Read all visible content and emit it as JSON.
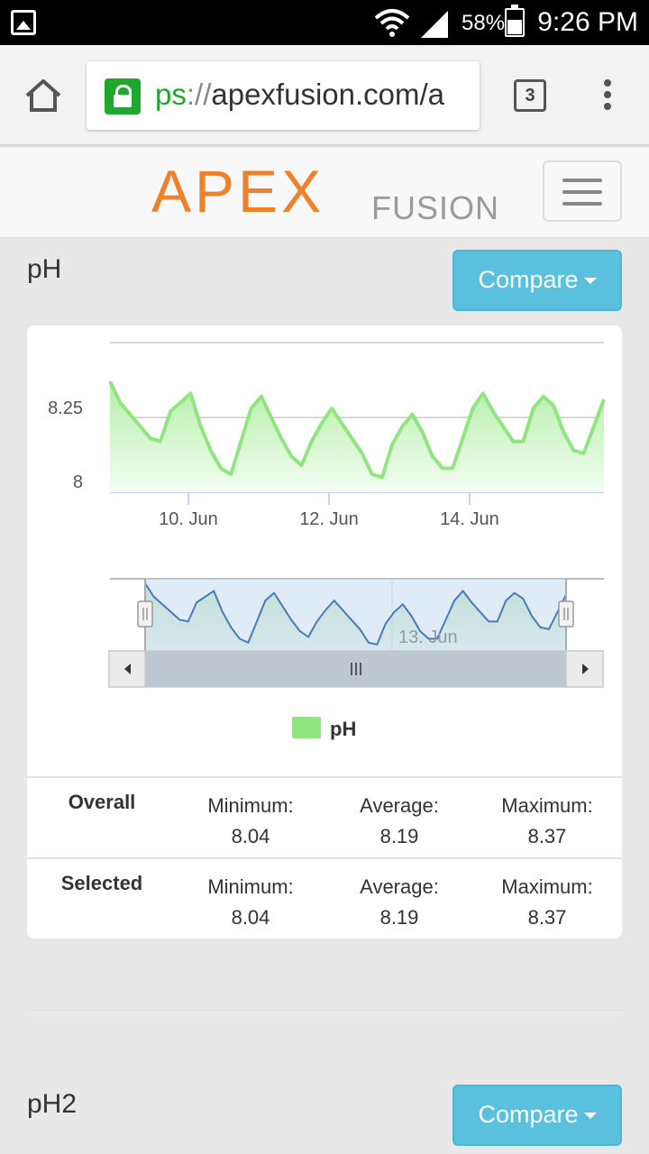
{
  "status_bar": {
    "battery_percent": "58%",
    "time": "9:26 PM",
    "icons": [
      "gallery-icon",
      "wifi-icon",
      "signal-icon",
      "battery-icon"
    ]
  },
  "browser": {
    "url_scheme": "ps",
    "url_sep": "://",
    "url_host": "apexfusion.com/a",
    "tab_count": "3"
  },
  "site": {
    "logo_main": "APEX",
    "logo_sub": "FUSION"
  },
  "sections": [
    {
      "title": "pH",
      "compare_label": "Compare",
      "legend_label": "pH",
      "stats": {
        "overall_label": "Overall",
        "selected_label": "Selected",
        "min_label": "Minimum:",
        "avg_label": "Average:",
        "max_label": "Maximum:",
        "overall": {
          "min": "8.04",
          "avg": "8.19",
          "max": "8.37"
        },
        "selected": {
          "min": "8.04",
          "avg": "8.19",
          "max": "8.37"
        }
      }
    },
    {
      "title": "pH2",
      "compare_label": "Compare"
    }
  ],
  "chart_data": {
    "type": "area",
    "y_ticks": [
      "8.25",
      "8"
    ],
    "x_ticks": [
      "10. Jun",
      "12. Jun",
      "14. Jun"
    ],
    "navigator_label": "13. Jun",
    "legend": [
      "pH"
    ],
    "colors": {
      "series": "#90e580",
      "fill_top": "#b4efa8",
      "navigator_line": "#4a7ab8",
      "navigator_bg": "#d3e4f7"
    },
    "series": [
      {
        "name": "pH",
        "values": [
          8.37,
          8.3,
          8.26,
          8.22,
          8.18,
          8.17,
          8.27,
          8.3,
          8.33,
          8.22,
          8.14,
          8.08,
          8.06,
          8.17,
          8.28,
          8.32,
          8.25,
          8.18,
          8.12,
          8.09,
          8.17,
          8.23,
          8.28,
          8.23,
          8.18,
          8.13,
          8.06,
          8.05,
          8.16,
          8.22,
          8.26,
          8.2,
          8.12,
          8.08,
          8.08,
          8.18,
          8.28,
          8.33,
          8.27,
          8.22,
          8.17,
          8.17,
          8.28,
          8.32,
          8.29,
          8.2,
          8.14,
          8.13,
          8.22,
          8.31
        ]
      }
    ]
  }
}
